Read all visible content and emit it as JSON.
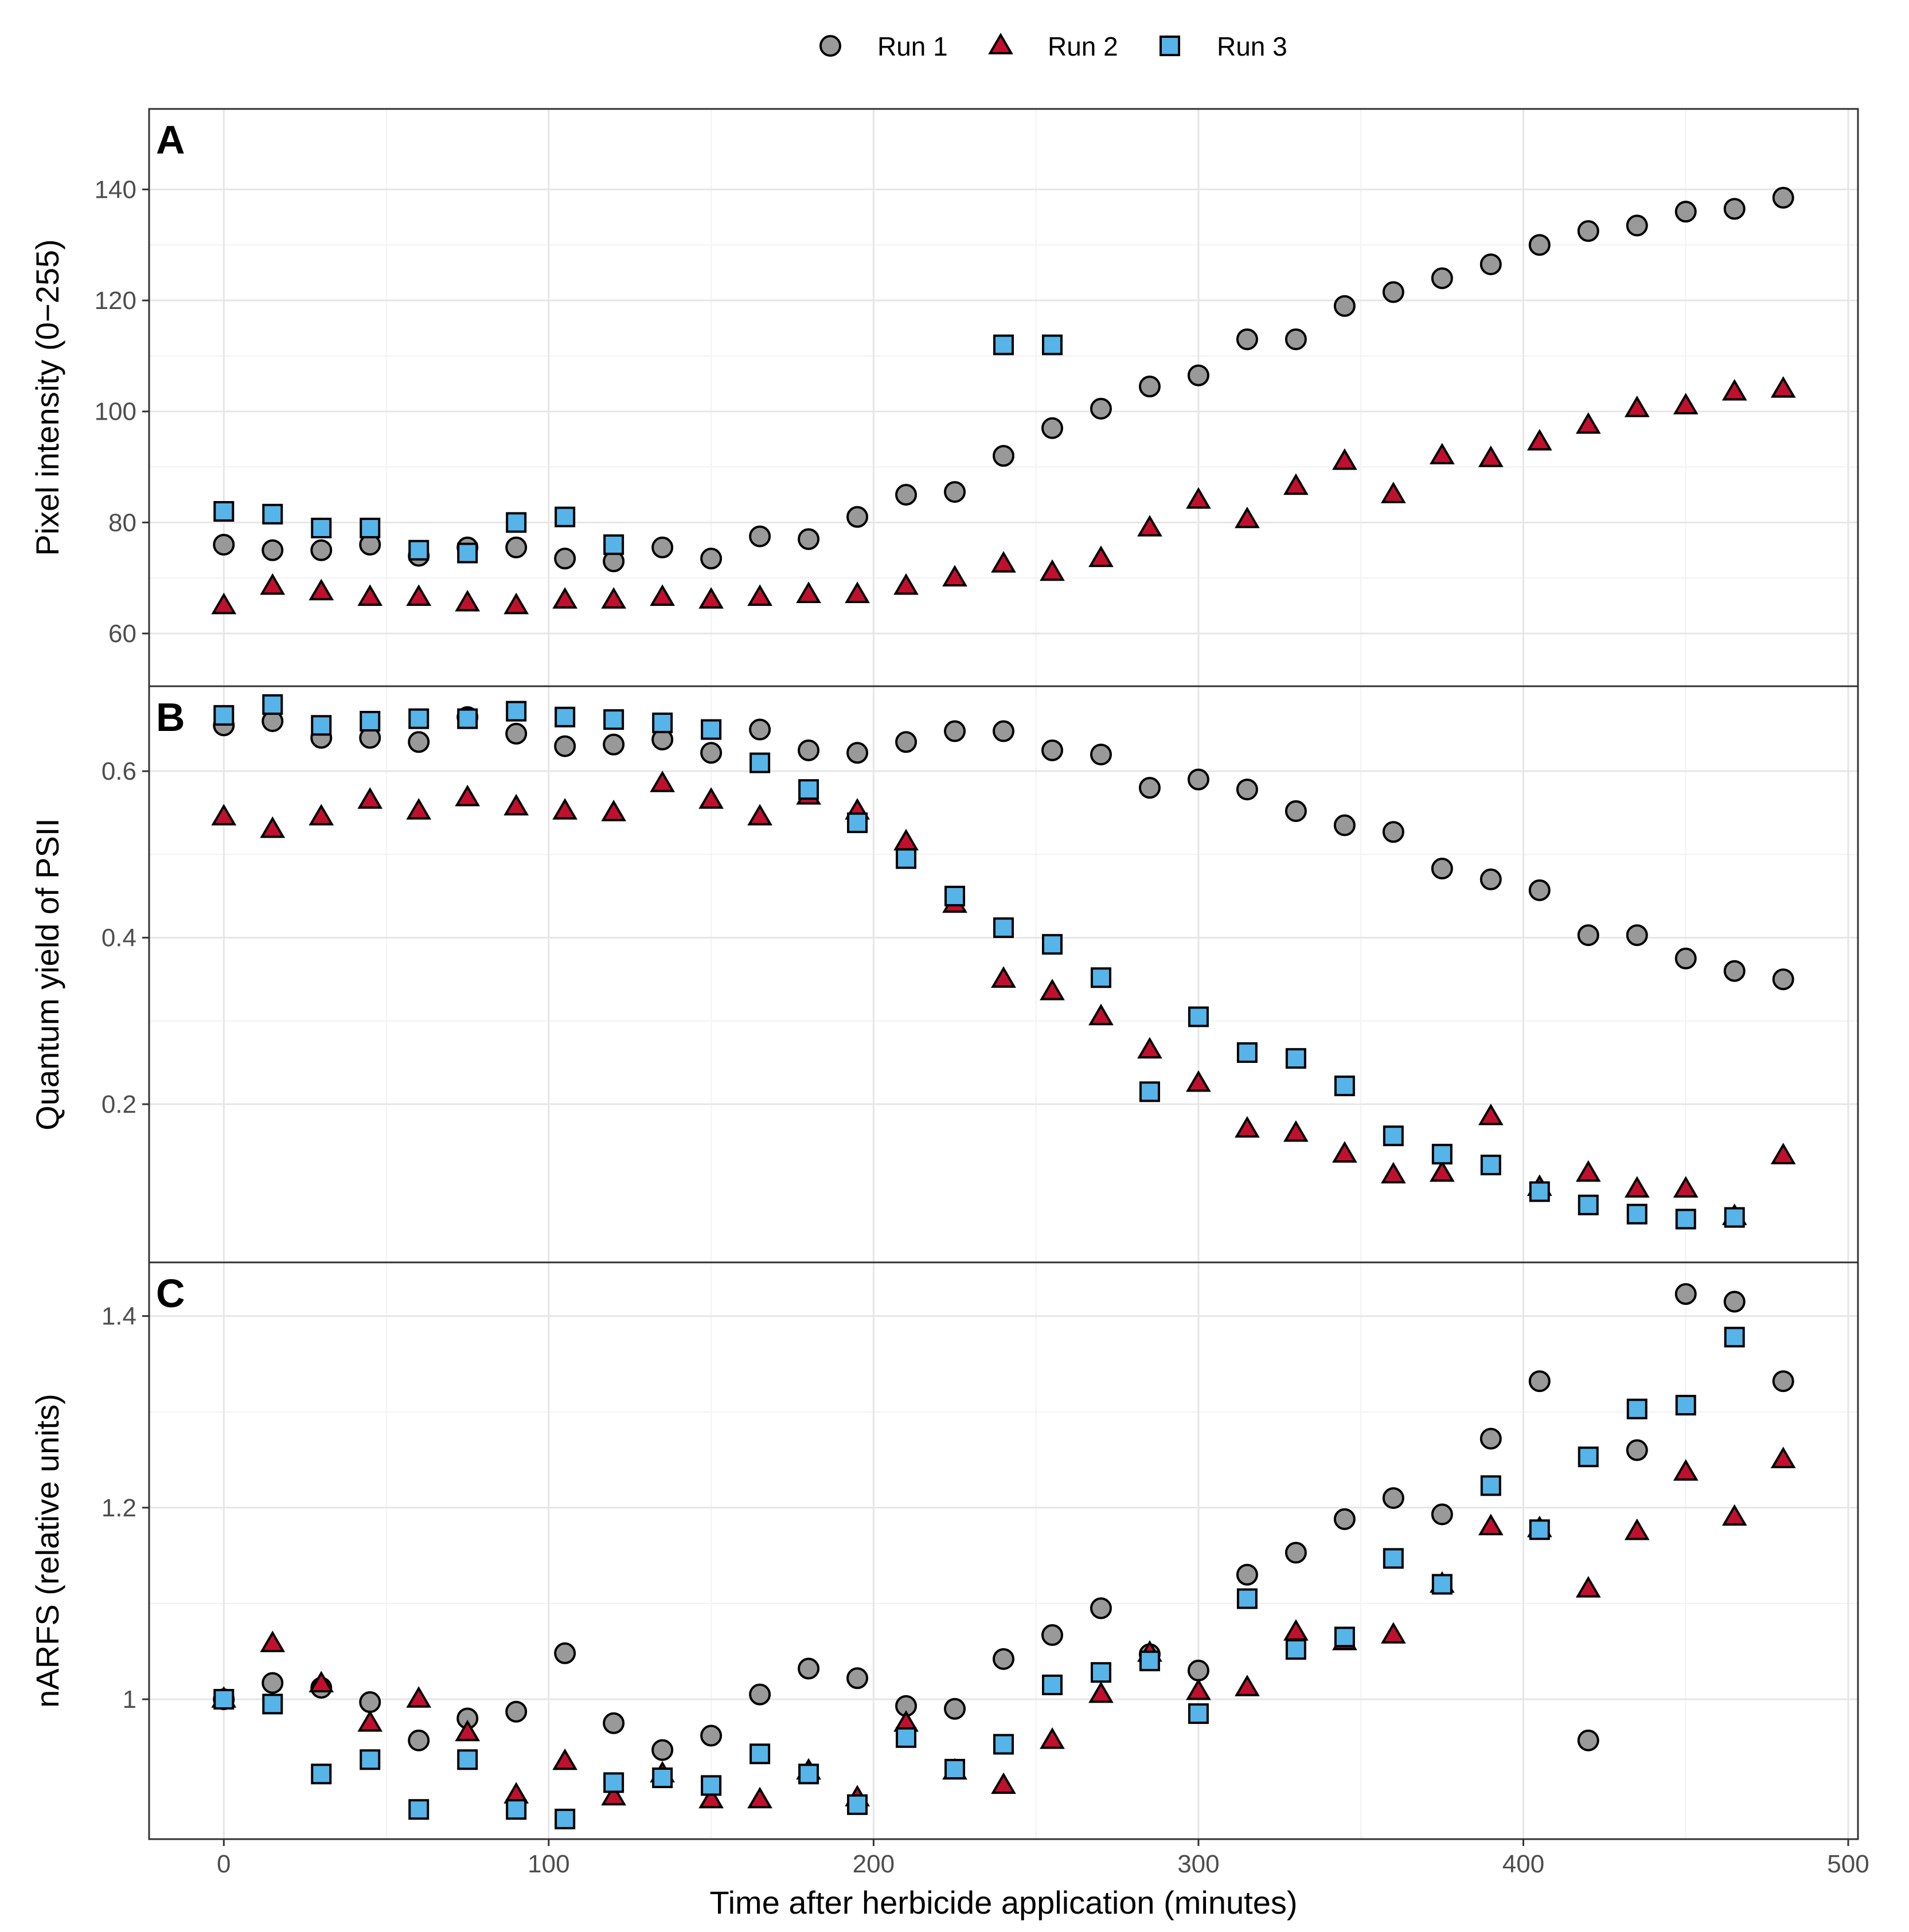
{
  "colors": {
    "run1": "#999999",
    "run2": "#c0102e",
    "run3": "#56b4e9"
  },
  "legend": [
    {
      "key": "run1",
      "label": "Run 1",
      "shape": "circle"
    },
    {
      "key": "run2",
      "label": "Run 2",
      "shape": "triangle"
    },
    {
      "key": "run3",
      "label": "Run 3",
      "shape": "square"
    }
  ],
  "chart_data": {
    "type": "scatter",
    "xlabel": "Time after herbicide application (minutes)",
    "xlim": [
      -23,
      503
    ],
    "x_ticks": [
      0,
      100,
      200,
      300,
      400,
      500
    ],
    "x": [
      0,
      15,
      30,
      45,
      60,
      75,
      90,
      105,
      120,
      135,
      150,
      165,
      180,
      195,
      210,
      225,
      240,
      255,
      270,
      285,
      300,
      315,
      330,
      345,
      360,
      375,
      390,
      405,
      420,
      435,
      450,
      465,
      480
    ],
    "panels": [
      {
        "tag": "A",
        "ylabel": "Pixel intensity  (0−255)",
        "ylim": [
          50.5,
          154.5
        ],
        "y_ticks": [
          60,
          80,
          100,
          120,
          140
        ],
        "series": [
          {
            "key": "run1",
            "name": "Run 1",
            "values": [
              76,
              75,
              75,
              76,
              74,
              75.5,
              75.5,
              73.5,
              73,
              75.5,
              73.5,
              77.5,
              77,
              81,
              85,
              85.5,
              92,
              97,
              100.5,
              104.5,
              106.5,
              113,
              113,
              119,
              121.5,
              124,
              126.5,
              130,
              132.5,
              133.5,
              136,
              136.5,
              138.5
            ]
          },
          {
            "key": "run2",
            "name": "Run 2",
            "values": [
              65,
              68.5,
              67.5,
              66.5,
              66.5,
              65.5,
              65,
              66,
              66,
              66.5,
              66,
              66.5,
              67,
              67,
              68.5,
              70,
              72.5,
              71,
              73.5,
              79,
              84,
              80.5,
              86.5,
              91,
              85,
              92,
              91.5,
              94.5,
              97.5,
              100.5,
              101,
              103.5,
              104
            ]
          },
          {
            "key": "run3",
            "name": "Run 3",
            "values": [
              82,
              81.5,
              79,
              79,
              75,
              74.5,
              80,
              81,
              76,
              null,
              null,
              null,
              null,
              null,
              null,
              null,
              112,
              112,
              null,
              null,
              null,
              null,
              null,
              null,
              null,
              null,
              null,
              null,
              null,
              null,
              null,
              null,
              null
            ]
          }
        ]
      },
      {
        "tag": "B",
        "ylabel": "Quantum yield of PSII",
        "ylim": [
          0.01,
          0.702
        ],
        "y_ticks": [
          0.2,
          0.4,
          0.6
        ],
        "series": [
          {
            "key": "run1",
            "name": "Run 1",
            "values": [
              0.655,
              0.66,
              0.64,
              0.64,
              0.635,
              0.665,
              0.645,
              0.63,
              0.632,
              0.638,
              0.622,
              0.65,
              0.625,
              0.622,
              0.635,
              0.648,
              0.648,
              0.625,
              0.62,
              0.58,
              0.59,
              0.578,
              0.552,
              0.535,
              0.527,
              0.483,
              0.47,
              0.457,
              0.403,
              0.403,
              0.375,
              0.36,
              0.35
            ]
          },
          {
            "key": "run2",
            "name": "Run 2",
            "values": [
              0.545,
              0.53,
              0.545,
              0.565,
              0.552,
              0.568,
              0.557,
              0.552,
              0.55,
              0.585,
              0.565,
              0.545,
              0.57,
              0.552,
              0.515,
              0.44,
              0.35,
              0.335,
              0.305,
              0.265,
              0.225,
              0.17,
              0.165,
              0.14,
              0.115,
              0.117,
              0.185,
              0.1,
              0.117,
              0.098,
              0.098,
              0.065,
              0.138
            ]
          },
          {
            "key": "run3",
            "name": "Run 3",
            "values": [
              0.667,
              0.68,
              0.655,
              0.66,
              0.663,
              0.663,
              0.672,
              0.665,
              0.662,
              0.658,
              0.65,
              0.61,
              0.578,
              0.538,
              0.495,
              0.45,
              0.412,
              0.392,
              0.352,
              0.215,
              0.305,
              0.262,
              0.255,
              0.222,
              0.162,
              0.14,
              0.127,
              0.095,
              0.079,
              0.068,
              0.062,
              0.064,
              null
            ]
          }
        ]
      },
      {
        "tag": "C",
        "ylabel": "nARFS (relative units)",
        "ylim": [
          0.854,
          1.456
        ],
        "y_ticks": [
          1.0,
          1.2,
          1.4
        ],
        "series": [
          {
            "key": "run1",
            "name": "Run 1",
            "values": [
              1.0,
              1.017,
              1.012,
              0.997,
              0.957,
              0.98,
              0.987,
              1.048,
              0.975,
              0.947,
              0.962,
              1.005,
              1.032,
              1.022,
              0.993,
              0.99,
              1.042,
              1.067,
              1.095,
              1.047,
              1.03,
              1.13,
              1.153,
              1.188,
              1.21,
              1.193,
              1.272,
              1.332,
              0.957,
              1.26,
              1.423,
              1.415,
              1.332
            ]
          },
          {
            "key": "run2",
            "name": "Run 2",
            "values": [
              1.0,
              1.058,
              1.016,
              0.975,
              1.0,
              0.965,
              0.9,
              0.935,
              0.898,
              0.922,
              0.895,
              0.895,
              0.925,
              0.897,
              0.975,
              0.925,
              0.91,
              0.957,
              1.005,
              1.048,
              1.008,
              1.012,
              1.07,
              1.06,
              1.067,
              1.12,
              1.18,
              1.178,
              1.115,
              1.175,
              1.237,
              1.19,
              1.25
            ]
          },
          {
            "key": "run3",
            "name": "Run 3",
            "values": [
              1.0,
              0.995,
              0.922,
              0.937,
              0.885,
              0.937,
              0.885,
              0.875,
              0.913,
              0.918,
              0.91,
              0.943,
              0.922,
              0.89,
              0.96,
              0.927,
              0.953,
              1.015,
              1.028,
              1.04,
              0.985,
              1.105,
              1.052,
              1.065,
              1.147,
              1.12,
              1.223,
              1.177,
              1.253,
              1.303,
              1.307,
              1.378,
              null
            ]
          }
        ]
      }
    ]
  }
}
